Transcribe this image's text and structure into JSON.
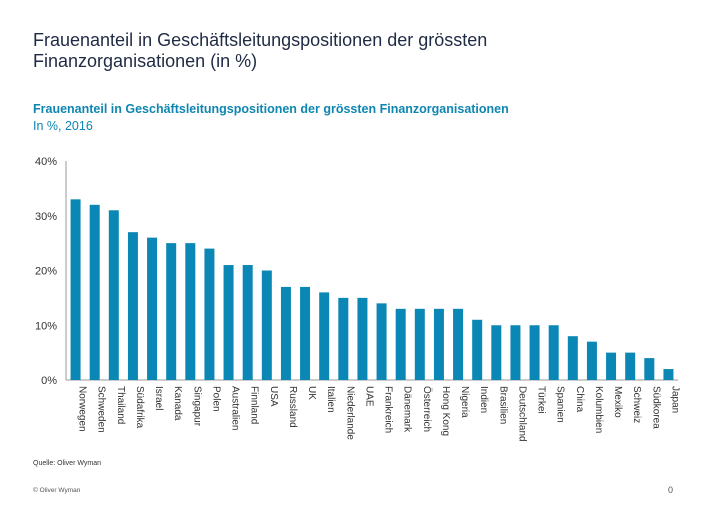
{
  "slide_title": "Frauenanteil in Geschäftsleitungspositionen der grössten Finanzorganisationen (in %)",
  "source": "Quelle: Oliver Wyman",
  "copyright": "© Oliver Wyman",
  "page_number": "0",
  "chart_data": {
    "type": "bar",
    "title": "Frauenanteil in Geschäftsleitungspositionen der grössten Finanzorganisationen",
    "subtitle": "In %, 2016",
    "categories": [
      "Norwegen",
      "Schweden",
      "Thailand",
      "Südafrika",
      "Israel",
      "Kanada",
      "Singapur",
      "Polen",
      "Australien",
      "Finnland",
      "USA",
      "Russland",
      "UK",
      "Italien",
      "Niederlande",
      "UAE",
      "Frankreich",
      "Dänemark",
      "Österreich",
      "Hong Kong",
      "Nigeria",
      "Indien",
      "Brasilien",
      "Deutschland",
      "Türkei",
      "Spanien",
      "China",
      "Kolumbien",
      "Mexiko",
      "Schweiz",
      "Südkorea",
      "Japan"
    ],
    "values": [
      33,
      32,
      31,
      27,
      26,
      25,
      25,
      24,
      21,
      21,
      20,
      17,
      17,
      16,
      15,
      15,
      14,
      13,
      13,
      13,
      13,
      11,
      10,
      10,
      10,
      10,
      8,
      7,
      5,
      5,
      4,
      2
    ],
    "ylim": [
      0,
      40
    ],
    "yticks": [
      "0%",
      "10%",
      "20%",
      "30%",
      "40%"
    ],
    "grid": false,
    "bar_color": "#0a87b4"
  }
}
